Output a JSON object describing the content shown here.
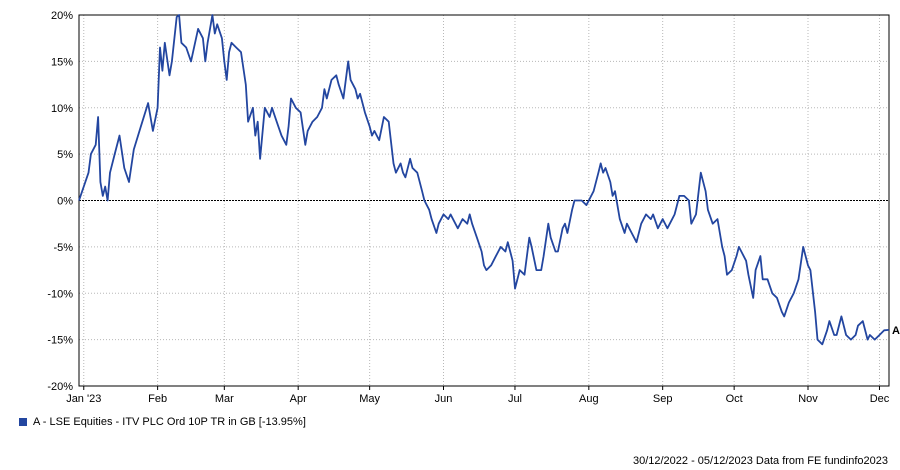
{
  "chart_data": {
    "type": "line",
    "y_ticks": [
      "20%",
      "15%",
      "10%",
      "5%",
      "0%",
      "-5%",
      "-10%",
      "-15%",
      "-20%"
    ],
    "x_ticks": [
      "Jan '23",
      "Feb",
      "Mar",
      "Apr",
      "May",
      "Jun",
      "Jul",
      "Aug",
      "Sep",
      "Oct",
      "Nov",
      "Dec"
    ],
    "x_tick_dates": [
      "2023-01-01",
      "2023-02-01",
      "2023-03-01",
      "2023-04-01",
      "2023-05-01",
      "2023-06-01",
      "2023-07-01",
      "2023-08-01",
      "2023-09-01",
      "2023-10-01",
      "2023-11-01",
      "2023-12-01"
    ],
    "ylim": [
      -20,
      20
    ],
    "xlim": [
      "2022-12-30",
      "2023-12-05"
    ],
    "grid": true,
    "zero_line": true,
    "series": [
      {
        "name": "A - LSE Equities - ITV PLC Ord 10P TR in GB [-13.95%]",
        "end_label": "A",
        "color": "#2346a0",
        "points": [
          [
            "2022-12-30",
            0
          ],
          [
            "2023-01-03",
            3
          ],
          [
            "2023-01-04",
            5
          ],
          [
            "2023-01-06",
            6
          ],
          [
            "2023-01-07",
            9
          ],
          [
            "2023-01-08",
            2
          ],
          [
            "2023-01-09",
            0.5
          ],
          [
            "2023-01-10",
            1.5
          ],
          [
            "2023-01-11",
            0
          ],
          [
            "2023-01-12",
            3
          ],
          [
            "2023-01-14",
            5
          ],
          [
            "2023-01-16",
            7
          ],
          [
            "2023-01-18",
            3.5
          ],
          [
            "2023-01-20",
            2
          ],
          [
            "2023-01-22",
            5.5
          ],
          [
            "2023-01-25",
            8
          ],
          [
            "2023-01-28",
            10.5
          ],
          [
            "2023-01-30",
            7.5
          ],
          [
            "2023-02-01",
            10
          ],
          [
            "2023-02-02",
            16.5
          ],
          [
            "2023-02-03",
            14
          ],
          [
            "2023-02-04",
            17
          ],
          [
            "2023-02-06",
            13.5
          ],
          [
            "2023-02-07",
            15
          ],
          [
            "2023-02-09",
            19.8
          ],
          [
            "2023-02-10",
            20
          ],
          [
            "2023-02-11",
            17
          ],
          [
            "2023-02-13",
            16.5
          ],
          [
            "2023-02-15",
            15
          ],
          [
            "2023-02-18",
            18.5
          ],
          [
            "2023-02-20",
            17.5
          ],
          [
            "2023-02-21",
            15
          ],
          [
            "2023-02-22",
            17
          ],
          [
            "2023-02-24",
            20
          ],
          [
            "2023-02-25",
            18
          ],
          [
            "2023-02-26",
            19
          ],
          [
            "2023-02-28",
            17.5
          ],
          [
            "2023-03-01",
            15
          ],
          [
            "2023-03-02",
            13
          ],
          [
            "2023-03-03",
            16
          ],
          [
            "2023-03-04",
            17
          ],
          [
            "2023-03-06",
            16.5
          ],
          [
            "2023-03-08",
            16
          ],
          [
            "2023-03-10",
            12.5
          ],
          [
            "2023-03-11",
            8.5
          ],
          [
            "2023-03-13",
            10
          ],
          [
            "2023-03-14",
            7
          ],
          [
            "2023-03-15",
            8.5
          ],
          [
            "2023-03-16",
            4.5
          ],
          [
            "2023-03-18",
            10
          ],
          [
            "2023-03-20",
            9
          ],
          [
            "2023-03-21",
            10
          ],
          [
            "2023-03-23",
            8.5
          ],
          [
            "2023-03-25",
            7
          ],
          [
            "2023-03-27",
            6
          ],
          [
            "2023-03-28",
            8
          ],
          [
            "2023-03-29",
            11
          ],
          [
            "2023-03-31",
            10
          ],
          [
            "2023-04-02",
            9.5
          ],
          [
            "2023-04-04",
            6
          ],
          [
            "2023-04-05",
            7.5
          ],
          [
            "2023-04-07",
            8.5
          ],
          [
            "2023-04-09",
            9
          ],
          [
            "2023-04-11",
            10
          ],
          [
            "2023-04-12",
            12
          ],
          [
            "2023-04-13",
            11
          ],
          [
            "2023-04-15",
            13
          ],
          [
            "2023-04-17",
            13.5
          ],
          [
            "2023-04-18",
            12.5
          ],
          [
            "2023-04-20",
            11
          ],
          [
            "2023-04-21",
            13
          ],
          [
            "2023-04-22",
            15
          ],
          [
            "2023-04-23",
            13
          ],
          [
            "2023-04-25",
            12
          ],
          [
            "2023-04-26",
            11
          ],
          [
            "2023-04-27",
            11.5
          ],
          [
            "2023-04-29",
            9.5
          ],
          [
            "2023-05-01",
            8
          ],
          [
            "2023-05-02",
            7
          ],
          [
            "2023-05-03",
            7.5
          ],
          [
            "2023-05-04",
            7
          ],
          [
            "2023-05-05",
            6.5
          ],
          [
            "2023-05-07",
            9
          ],
          [
            "2023-05-09",
            8.5
          ],
          [
            "2023-05-11",
            4
          ],
          [
            "2023-05-12",
            3
          ],
          [
            "2023-05-14",
            4
          ],
          [
            "2023-05-15",
            3
          ],
          [
            "2023-05-16",
            2.5
          ],
          [
            "2023-05-18",
            4.5
          ],
          [
            "2023-05-19",
            3.5
          ],
          [
            "2023-05-21",
            3
          ],
          [
            "2023-05-23",
            1
          ],
          [
            "2023-05-24",
            0
          ],
          [
            "2023-05-26",
            -1
          ],
          [
            "2023-05-27",
            -2
          ],
          [
            "2023-05-29",
            -3.5
          ],
          [
            "2023-05-30",
            -2.5
          ],
          [
            "2023-06-01",
            -1.5
          ],
          [
            "2023-06-03",
            -2
          ],
          [
            "2023-06-04",
            -1.5
          ],
          [
            "2023-06-06",
            -2.5
          ],
          [
            "2023-06-07",
            -3
          ],
          [
            "2023-06-09",
            -2
          ],
          [
            "2023-06-11",
            -2.5
          ],
          [
            "2023-06-12",
            -1.5
          ],
          [
            "2023-06-13",
            -2.5
          ],
          [
            "2023-06-15",
            -4
          ],
          [
            "2023-06-17",
            -5.5
          ],
          [
            "2023-06-18",
            -7
          ],
          [
            "2023-06-19",
            -7.5
          ],
          [
            "2023-06-21",
            -7
          ],
          [
            "2023-06-23",
            -6
          ],
          [
            "2023-06-25",
            -5
          ],
          [
            "2023-06-27",
            -5.5
          ],
          [
            "2023-06-28",
            -4.5
          ],
          [
            "2023-06-30",
            -6.5
          ],
          [
            "2023-07-01",
            -9.5
          ],
          [
            "2023-07-02",
            -8.5
          ],
          [
            "2023-07-03",
            -7.5
          ],
          [
            "2023-07-05",
            -8
          ],
          [
            "2023-07-07",
            -4
          ],
          [
            "2023-07-08",
            -5
          ],
          [
            "2023-07-10",
            -7.5
          ],
          [
            "2023-07-12",
            -7.5
          ],
          [
            "2023-07-13",
            -6
          ],
          [
            "2023-07-15",
            -2.5
          ],
          [
            "2023-07-16",
            -4
          ],
          [
            "2023-07-18",
            -5.5
          ],
          [
            "2023-07-19",
            -5.5
          ],
          [
            "2023-07-21",
            -3
          ],
          [
            "2023-07-22",
            -2.5
          ],
          [
            "2023-07-23",
            -3.5
          ],
          [
            "2023-07-25",
            -1
          ],
          [
            "2023-07-26",
            0
          ],
          [
            "2023-07-27",
            0
          ],
          [
            "2023-07-29",
            0
          ],
          [
            "2023-07-31",
            -0.5
          ],
          [
            "2023-08-01",
            0
          ],
          [
            "2023-08-03",
            1
          ],
          [
            "2023-08-05",
            3
          ],
          [
            "2023-08-06",
            4
          ],
          [
            "2023-08-07",
            3
          ],
          [
            "2023-08-08",
            3.5
          ],
          [
            "2023-08-10",
            2
          ],
          [
            "2023-08-11",
            0.5
          ],
          [
            "2023-08-12",
            1
          ],
          [
            "2023-08-14",
            -2
          ],
          [
            "2023-08-16",
            -3.5
          ],
          [
            "2023-08-17",
            -2.5
          ],
          [
            "2023-08-19",
            -3.5
          ],
          [
            "2023-08-21",
            -4.5
          ],
          [
            "2023-08-23",
            -2.5
          ],
          [
            "2023-08-25",
            -1.5
          ],
          [
            "2023-08-27",
            -2
          ],
          [
            "2023-08-28",
            -1.5
          ],
          [
            "2023-08-30",
            -3
          ],
          [
            "2023-09-01",
            -2
          ],
          [
            "2023-09-03",
            -3
          ],
          [
            "2023-09-05",
            -2
          ],
          [
            "2023-09-06",
            -1.5
          ],
          [
            "2023-09-08",
            0.5
          ],
          [
            "2023-09-10",
            0.5
          ],
          [
            "2023-09-12",
            0
          ],
          [
            "2023-09-13",
            -2.5
          ],
          [
            "2023-09-15",
            -1.5
          ],
          [
            "2023-09-17",
            3
          ],
          [
            "2023-09-19",
            1
          ],
          [
            "2023-09-20",
            -1
          ],
          [
            "2023-09-22",
            -2.5
          ],
          [
            "2023-09-24",
            -2
          ],
          [
            "2023-09-26",
            -5
          ],
          [
            "2023-09-27",
            -6
          ],
          [
            "2023-09-28",
            -8
          ],
          [
            "2023-09-30",
            -7.5
          ],
          [
            "2023-10-02",
            -6
          ],
          [
            "2023-10-03",
            -5
          ],
          [
            "2023-10-04",
            -5.5
          ],
          [
            "2023-10-06",
            -6.5
          ],
          [
            "2023-10-07",
            -8
          ],
          [
            "2023-10-09",
            -10.5
          ],
          [
            "2023-10-10",
            -7.5
          ],
          [
            "2023-10-12",
            -6
          ],
          [
            "2023-10-13",
            -8.5
          ],
          [
            "2023-10-15",
            -8.5
          ],
          [
            "2023-10-17",
            -10
          ],
          [
            "2023-10-19",
            -10.5
          ],
          [
            "2023-10-21",
            -12
          ],
          [
            "2023-10-22",
            -12.5
          ],
          [
            "2023-10-24",
            -11
          ],
          [
            "2023-10-26",
            -10
          ],
          [
            "2023-10-28",
            -8.5
          ],
          [
            "2023-10-30",
            -5
          ],
          [
            "2023-11-01",
            -7
          ],
          [
            "2023-11-02",
            -7.5
          ],
          [
            "2023-11-04",
            -12
          ],
          [
            "2023-11-05",
            -15
          ],
          [
            "2023-11-07",
            -15.5
          ],
          [
            "2023-11-09",
            -14
          ],
          [
            "2023-11-10",
            -13
          ],
          [
            "2023-11-12",
            -14.5
          ],
          [
            "2023-11-13",
            -14.5
          ],
          [
            "2023-11-15",
            -12.5
          ],
          [
            "2023-11-17",
            -14.5
          ],
          [
            "2023-11-19",
            -15
          ],
          [
            "2023-11-21",
            -14.5
          ],
          [
            "2023-11-22",
            -13.5
          ],
          [
            "2023-11-24",
            -13
          ],
          [
            "2023-11-26",
            -15
          ],
          [
            "2023-11-27",
            -14.5
          ],
          [
            "2023-11-29",
            -15
          ],
          [
            "2023-12-01",
            -14.5
          ],
          [
            "2023-12-03",
            -14
          ],
          [
            "2023-12-05",
            -13.95
          ]
        ]
      }
    ]
  },
  "legend": {
    "label": "A - LSE Equities - ITV PLC Ord 10P TR in GB [-13.95%]",
    "color": "#2346a0"
  },
  "footer": {
    "date_range": "30/12/2022 - 05/12/2023",
    "source": "Data from FE fundinfo2023"
  }
}
